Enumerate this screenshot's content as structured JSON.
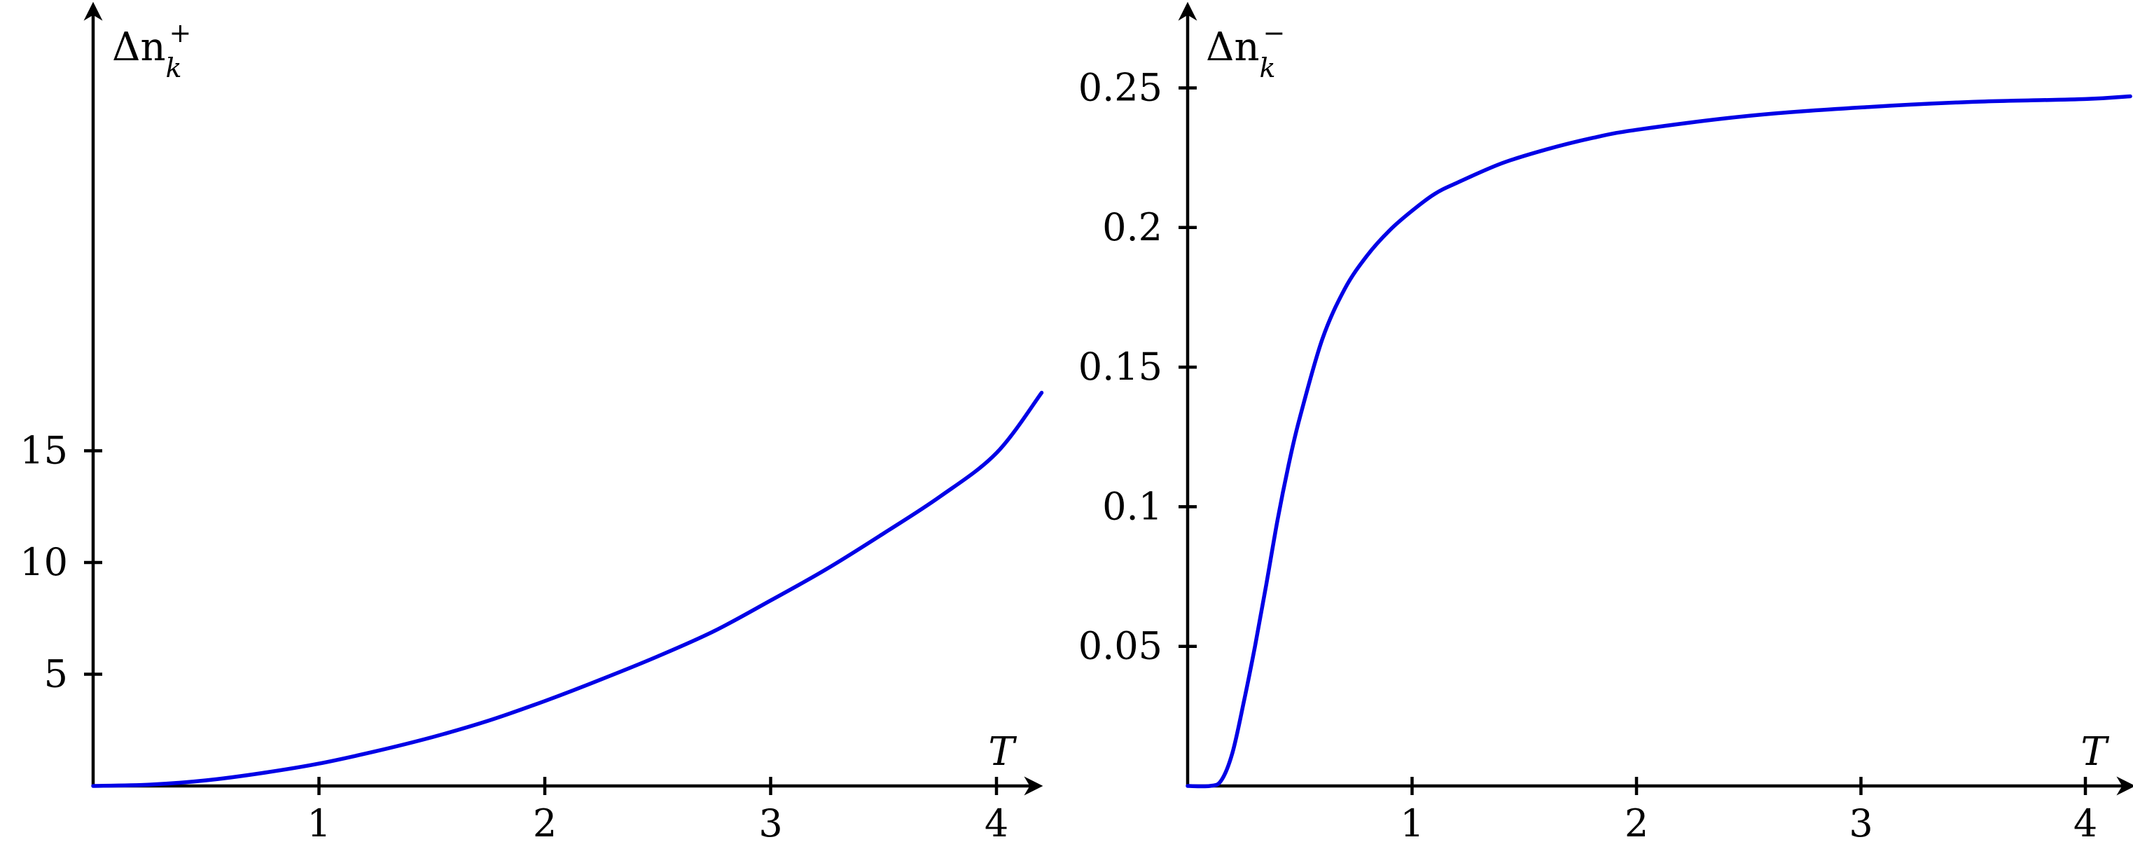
{
  "chart_data": [
    {
      "type": "line",
      "ylabel": {
        "base": "Δn",
        "sub": "k",
        "sup": "+"
      },
      "xlabel": "T",
      "xlim": [
        0,
        4.2
      ],
      "ylim": [
        0,
        17.6
      ],
      "xticks": [
        1,
        2,
        3,
        4
      ],
      "xtick_labels": [
        "1",
        "2",
        "3",
        "4"
      ],
      "yticks": [
        5,
        10,
        15
      ],
      "ytick_labels": [
        "5",
        "10",
        "15"
      ],
      "grid": false,
      "series": [
        {
          "color": "#0000e6",
          "x": [
            0,
            0.25,
            0.5,
            0.75,
            1,
            1.25,
            1.5,
            1.75,
            2,
            2.25,
            2.5,
            2.75,
            3,
            3.25,
            3.5,
            3.75,
            4,
            4.2
          ],
          "y": [
            0,
            0.06,
            0.25,
            0.58,
            1.0,
            1.55,
            2.18,
            2.92,
            3.8,
            4.77,
            5.8,
            6.93,
            8.3,
            9.72,
            11.3,
            12.95,
            14.9,
            17.6
          ]
        }
      ]
    },
    {
      "type": "line",
      "ylabel": {
        "base": "Δn",
        "sub": "k",
        "sup": "−"
      },
      "xlabel": "T",
      "xlim": [
        0,
        4.2
      ],
      "ylim": [
        0,
        0.28
      ],
      "xticks": [
        1,
        2,
        3,
        4
      ],
      "xtick_labels": [
        "1",
        "2",
        "3",
        "4"
      ],
      "yticks": [
        0.05,
        0.1,
        0.15,
        0.2,
        0.25
      ],
      "ytick_labels": [
        "0.05",
        "0.1",
        "0.15",
        "0.2",
        "0.25"
      ],
      "grid": false,
      "series": [
        {
          "color": "#0000e6",
          "x": [
            0,
            0.1,
            0.15,
            0.2,
            0.25,
            0.3,
            0.35,
            0.4,
            0.45,
            0.5,
            0.6,
            0.7,
            0.8,
            0.9,
            1.0,
            1.1,
            1.2,
            1.4,
            1.6,
            1.8,
            2.0,
            2.5,
            3.0,
            3.5,
            4.0,
            4.2
          ],
          "y": [
            0,
            0,
            0.002,
            0.012,
            0.03,
            0.05,
            0.072,
            0.095,
            0.115,
            0.132,
            0.16,
            0.178,
            0.19,
            0.199,
            0.206,
            0.212,
            0.216,
            0.223,
            0.228,
            0.232,
            0.235,
            0.24,
            0.243,
            0.245,
            0.246,
            0.247
          ]
        }
      ]
    }
  ]
}
